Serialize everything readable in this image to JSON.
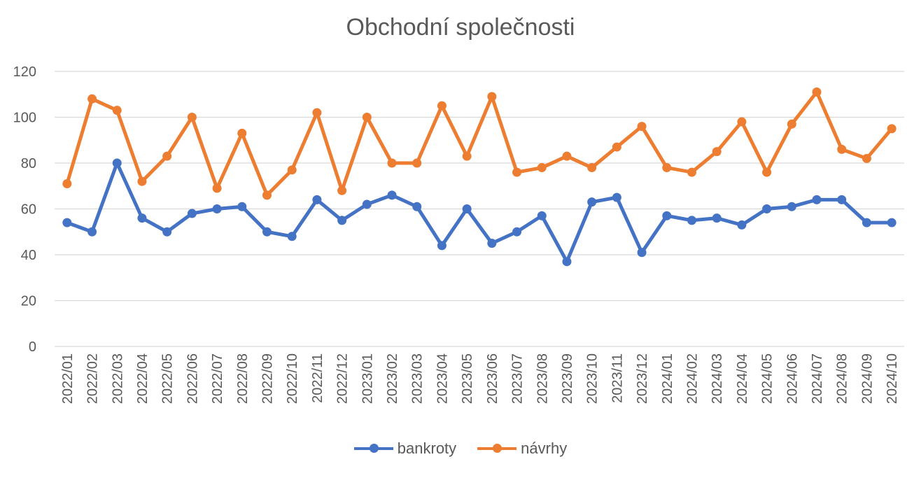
{
  "chart_data": {
    "type": "line",
    "title": "Obchodní společnosti",
    "xlabel": "",
    "ylabel": "",
    "ylim": [
      0,
      120
    ],
    "yticks": [
      0,
      20,
      40,
      60,
      80,
      100,
      120
    ],
    "grid": true,
    "legend_position": "bottom",
    "categories": [
      "2022/01",
      "2022/02",
      "2022/03",
      "2022/04",
      "2022/05",
      "2022/06",
      "2022/07",
      "2022/08",
      "2022/09",
      "2022/10",
      "2022/11",
      "2022/12",
      "2023/01",
      "2023/02",
      "2023/03",
      "2023/04",
      "2023/05",
      "2023/06",
      "2023/07",
      "2023/08",
      "2023/09",
      "2023/10",
      "2023/11",
      "2023/12",
      "2024/01",
      "2024/02",
      "2024/03",
      "2024/04",
      "2024/05",
      "2024/06",
      "2024/07",
      "2024/08",
      "2024/09",
      "2024/10"
    ],
    "series": [
      {
        "name": "bankroty",
        "color": "#4472c4",
        "values": [
          54,
          50,
          80,
          56,
          50,
          58,
          60,
          61,
          50,
          48,
          64,
          55,
          62,
          66,
          61,
          44,
          60,
          45,
          50,
          57,
          37,
          63,
          65,
          41,
          57,
          55,
          56,
          53,
          60,
          61,
          64,
          64,
          54,
          54
        ]
      },
      {
        "name": "návrhy",
        "color": "#ed7d31",
        "values": [
          71,
          108,
          103,
          72,
          83,
          100,
          69,
          93,
          66,
          77,
          102,
          68,
          100,
          80,
          80,
          105,
          83,
          109,
          76,
          78,
          83,
          78,
          87,
          96,
          78,
          76,
          85,
          98,
          76,
          97,
          111,
          86,
          82,
          95
        ]
      }
    ]
  }
}
